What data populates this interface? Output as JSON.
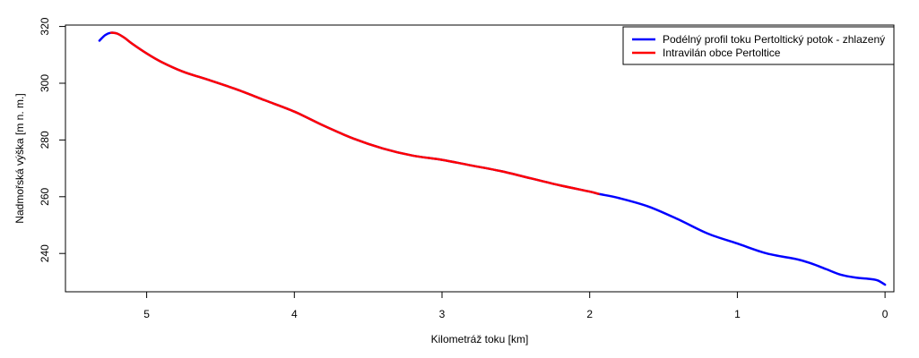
{
  "chart_data": {
    "type": "line",
    "xlabel": "Kilometráž toku [km]",
    "ylabel": "Nadmořská výška [m n. m.]",
    "xlim": [
      5.55,
      -0.06
    ],
    "ylim": [
      226.5,
      320.5
    ],
    "x_reversed": true,
    "x_ticks": [
      5,
      4,
      3,
      2,
      1,
      0
    ],
    "x_tick_labels": [
      "5",
      "4",
      "3",
      "2",
      "1",
      "0"
    ],
    "y_ticks": [
      240,
      260,
      280,
      300,
      320
    ],
    "y_tick_labels": [
      "240",
      "260",
      "280",
      "300",
      "320"
    ],
    "grid": false,
    "legend_position": "top-right",
    "series": [
      {
        "name": "Podélný profil toku Pertoltický potok - zhlazený",
        "color": "#0000ff",
        "x": [
          5.32,
          5.28,
          5.24,
          5.2,
          5.15,
          5.1,
          5.0,
          4.9,
          4.75,
          4.6,
          4.4,
          4.2,
          4.0,
          3.8,
          3.6,
          3.4,
          3.2,
          3.0,
          2.8,
          2.6,
          2.4,
          2.2,
          2.0,
          1.94,
          1.8,
          1.6,
          1.4,
          1.2,
          1.0,
          0.8,
          0.6,
          0.5,
          0.4,
          0.3,
          0.2,
          0.1,
          0.05,
          0.0
        ],
        "y": [
          315.0,
          317.0,
          317.8,
          317.5,
          316.0,
          314.0,
          310.5,
          307.5,
          304.0,
          301.5,
          298.0,
          294.0,
          290.0,
          285.0,
          280.5,
          277.0,
          274.5,
          273.0,
          271.0,
          269.0,
          266.5,
          264.0,
          261.8,
          261.0,
          259.5,
          256.5,
          252.0,
          247.0,
          243.5,
          240.0,
          238.0,
          236.5,
          234.5,
          232.5,
          231.5,
          231.0,
          230.5,
          229.0
        ]
      },
      {
        "name": "Intravilán obce Pertoltice",
        "color": "#ff0000",
        "x": [
          5.24,
          5.2,
          5.15,
          5.1,
          5.0,
          4.9,
          4.75,
          4.6,
          4.4,
          4.2,
          4.0,
          3.8,
          3.6,
          3.4,
          3.2,
          3.0,
          2.8,
          2.6,
          2.4,
          2.2,
          2.0,
          1.94
        ],
        "y": [
          317.8,
          317.5,
          316.0,
          314.0,
          310.5,
          307.5,
          304.0,
          301.5,
          298.0,
          294.0,
          290.0,
          285.0,
          280.5,
          277.0,
          274.5,
          273.0,
          271.0,
          269.0,
          266.5,
          264.0,
          261.8,
          261.0
        ]
      }
    ]
  }
}
